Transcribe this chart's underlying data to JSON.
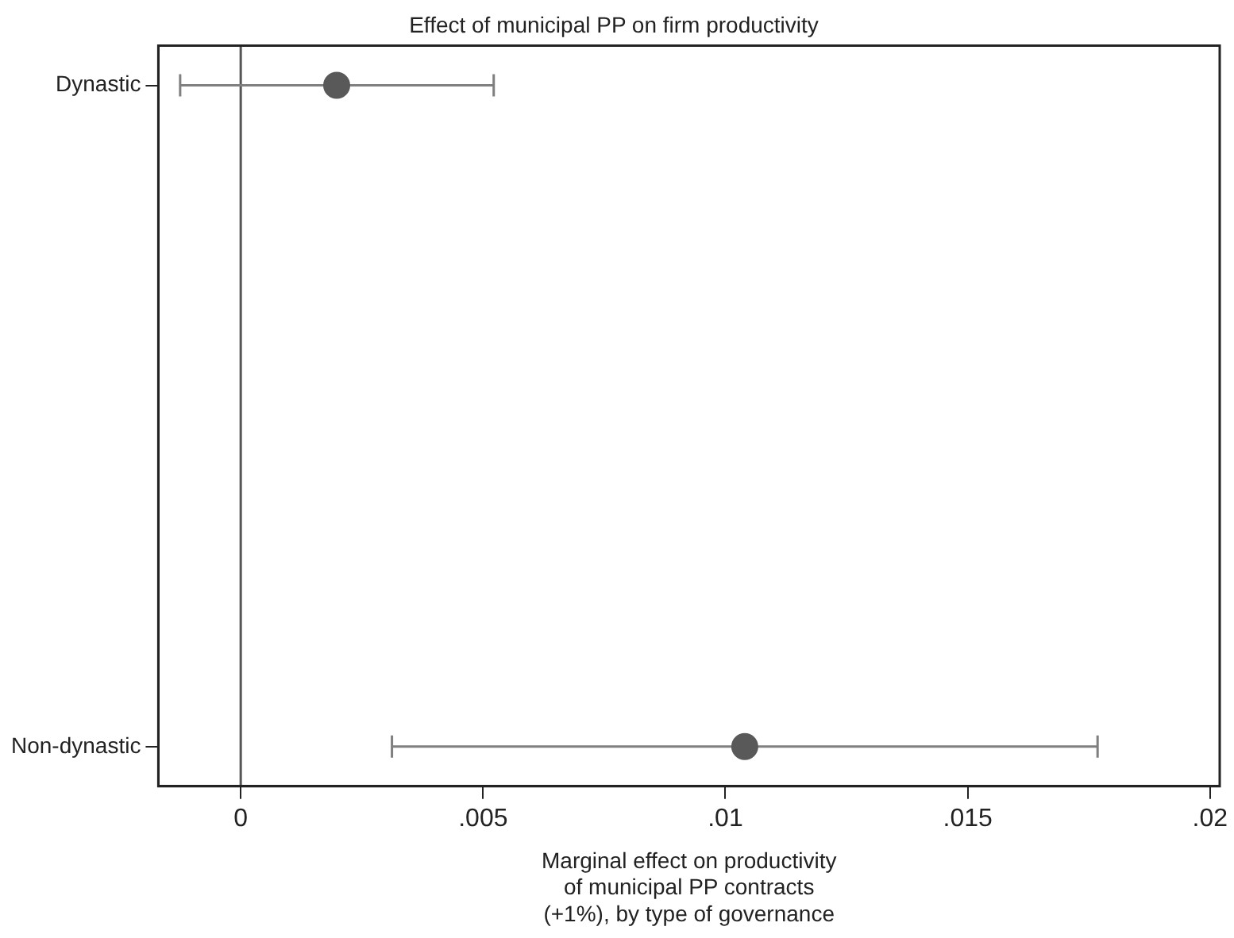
{
  "chart_data": {
    "type": "scatter",
    "orientation": "horizontal",
    "title": "Effect of municipal PP on firm productivity",
    "xlabel": "Marginal effect on productivity\nof municipal PP contracts\n(+1%), by type of governance",
    "categories": [
      "Dynastic",
      "Non-dynastic"
    ],
    "series": [
      {
        "color": "#595959",
        "values": [
          0.00198,
          0.0104
        ],
        "errors": [
          [
            -0.00125,
            0.00522
          ],
          [
            0.00312,
            0.01768
          ]
        ]
      }
    ],
    "xlim": [
      -0.0017,
      0.0202
    ],
    "xticks": [
      0,
      {
        "value": 0.005,
        "label": ".005"
      },
      {
        "value": 0.01,
        "label": ".01"
      },
      {
        "value": 0.015,
        "label": ".015"
      },
      {
        "value": 0.02,
        "label": ".02"
      }
    ],
    "ref_lines": [
      {
        "axis": "x",
        "value": 0,
        "color": "#555555"
      }
    ],
    "grid": false,
    "legend": false,
    "marker": "circle"
  }
}
